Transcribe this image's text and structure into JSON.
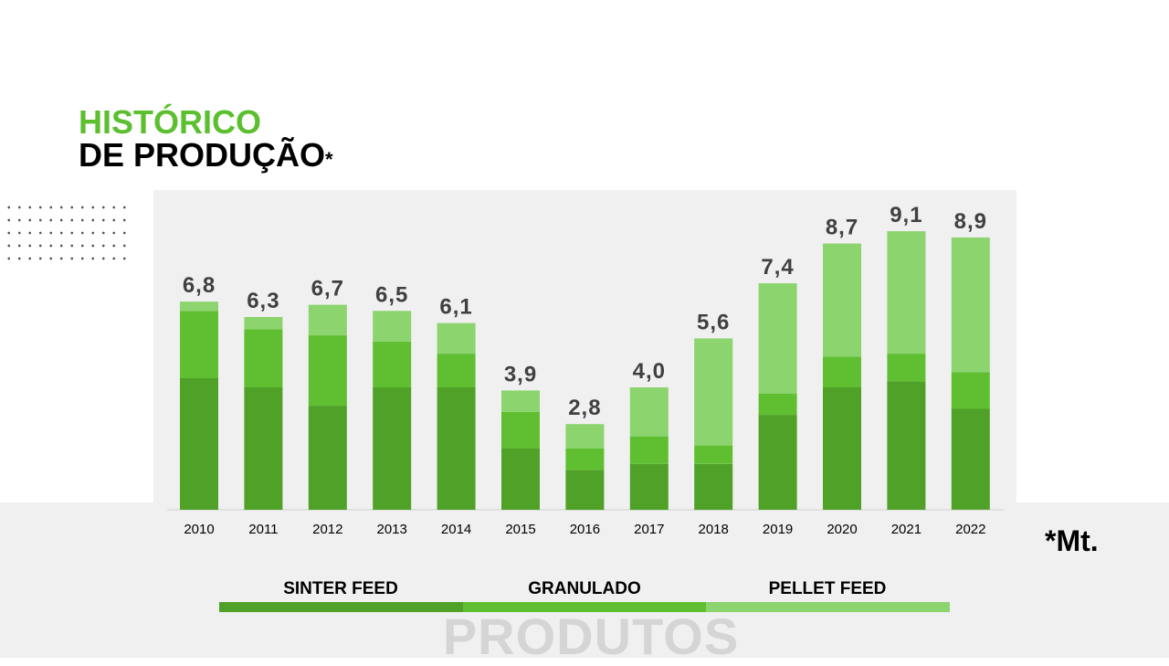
{
  "title": {
    "line1": "HISTÓRICO",
    "line2": "DE PRODUÇÃO",
    "asterisk": "*"
  },
  "unit_note": "*Mt.",
  "footer": {
    "watermark": "PRODUTOS"
  },
  "colors": {
    "sinter_feed": "#4fa128",
    "granulado": "#5fbf30",
    "pellet_feed": "#8bd46e",
    "title_accent": "#5cbf2f",
    "value_label": "#404040"
  },
  "chart_data": {
    "type": "bar",
    "stacked": true,
    "title": "HISTÓRICO DE PRODUÇÃO*",
    "unit": "*Mt.",
    "categories": [
      "2010",
      "2011",
      "2012",
      "2013",
      "2014",
      "2015",
      "2016",
      "2017",
      "2018",
      "2019",
      "2020",
      "2021",
      "2022"
    ],
    "series": [
      {
        "name": "SINTER FEED",
        "color": "#4fa128",
        "values": [
          4.3,
          4.0,
          3.4,
          4.0,
          4.0,
          2.0,
          1.3,
          1.5,
          1.5,
          3.1,
          4.0,
          4.2,
          3.3
        ]
      },
      {
        "name": "GRANULADO",
        "color": "#5fbf30",
        "values": [
          2.2,
          1.9,
          2.3,
          1.5,
          1.1,
          1.2,
          0.7,
          0.9,
          0.6,
          0.7,
          1.0,
          0.9,
          1.2
        ]
      },
      {
        "name": "PELLET FEED",
        "color": "#8bd46e",
        "values": [
          0.3,
          0.4,
          1.0,
          1.0,
          1.0,
          0.7,
          0.8,
          1.6,
          3.5,
          3.6,
          3.7,
          4.0,
          4.4
        ]
      }
    ],
    "totals": [
      "6,8",
      "6,3",
      "6,7",
      "6,5",
      "6,1",
      "3,9",
      "2,8",
      "4,0",
      "5,6",
      "7,4",
      "8,7",
      "9,1",
      "8,9"
    ],
    "legend": [
      "SINTER FEED",
      "GRANULADO",
      "PELLET FEED"
    ],
    "legend_placement": "bottom",
    "ylim": [
      0,
      10
    ],
    "grid": false,
    "y_axis_visible": false
  }
}
